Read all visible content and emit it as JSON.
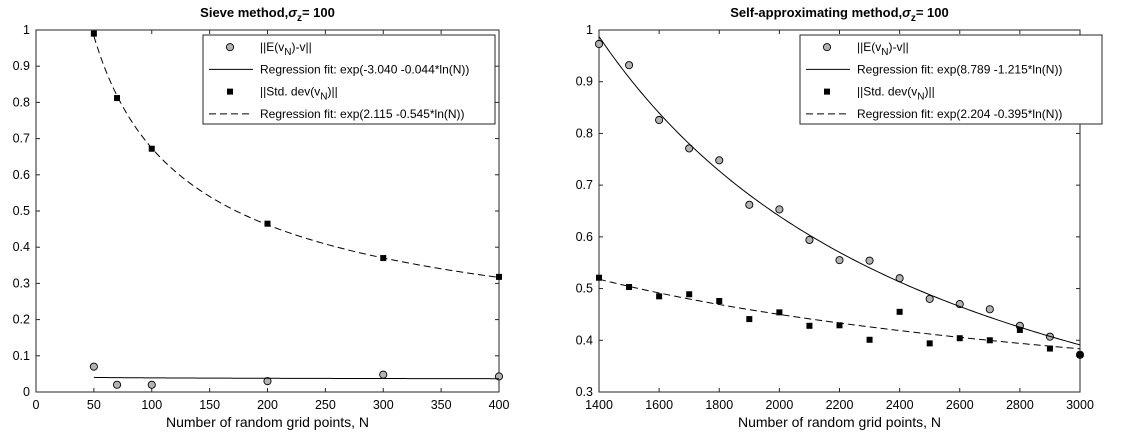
{
  "chart_data": [
    {
      "type": "scatter",
      "title_main": "Sieve method,",
      "title_sigma": "σ",
      "title_sub": "z",
      "title_tail": "= 100",
      "xlabel": "Number of random grid points, N",
      "ylabel": "",
      "xlim": [
        0,
        400
      ],
      "ylim": [
        0,
        1
      ],
      "xticks": [
        0,
        50,
        100,
        150,
        200,
        250,
        300,
        350,
        400
      ],
      "yticks": [
        0,
        0.1,
        0.2,
        0.3,
        0.4,
        0.5,
        0.6,
        0.7,
        0.8,
        0.9,
        1
      ],
      "grid": false,
      "legend_position": "top-right",
      "series": [
        {
          "name": "||E(vN)-v||",
          "label_parts": [
            "||E(v",
            "N",
            ")-v||"
          ],
          "marker": "circle",
          "x": [
            50,
            70,
            100,
            200,
            300,
            400
          ],
          "y": [
            0.07,
            0.02,
            0.02,
            0.03,
            0.048,
            0.043
          ]
        },
        {
          "name": "Regression fit: exp(-3.040 -0.044*ln(N))",
          "label_parts": [
            "Regression fit: exp(-3.040 -0.044*ln(N))"
          ],
          "line": "solid",
          "fit": {
            "a": -3.04,
            "b": -0.044
          },
          "x_range": [
            50,
            400
          ]
        },
        {
          "name": "||Std. dev(vN)||",
          "label_parts": [
            "||Std. dev(v",
            "N",
            ")||"
          ],
          "marker": "square",
          "x": [
            50,
            70,
            100,
            200,
            300,
            400
          ],
          "y": [
            0.99,
            0.812,
            0.672,
            0.465,
            0.37,
            0.318
          ]
        },
        {
          "name": "Regression fit: exp(2.115 -0.545*ln(N))",
          "label_parts": [
            "Regression fit: exp(2.115 -0.545*ln(N))"
          ],
          "line": "dashed",
          "fit": {
            "a": 2.115,
            "b": -0.545
          },
          "x_range": [
            50,
            400
          ]
        }
      ]
    },
    {
      "type": "scatter",
      "title_main": "Self-approximating method,",
      "title_sigma": "σ",
      "title_sub": "z",
      "title_tail": "= 100",
      "xlabel": "Number of random grid points, N",
      "ylabel": "",
      "xlim": [
        1400,
        3000
      ],
      "ylim": [
        0.3,
        1
      ],
      "xticks": [
        1400,
        1600,
        1800,
        2000,
        2200,
        2400,
        2600,
        2800,
        3000
      ],
      "yticks": [
        0.3,
        0.4,
        0.5,
        0.6,
        0.7,
        0.8,
        0.9,
        1
      ],
      "grid": false,
      "legend_position": "top-right",
      "series": [
        {
          "name": "||E(vN)-v||",
          "label_parts": [
            "||E(v",
            "N",
            ")-v||"
          ],
          "marker": "circle",
          "x": [
            1400,
            1500,
            1600,
            1700,
            1800,
            1900,
            2000,
            2100,
            2200,
            2300,
            2400,
            2500,
            2600,
            2700,
            2800,
            2900,
            3000
          ],
          "y": [
            0.973,
            0.932,
            0.826,
            0.771,
            0.748,
            0.662,
            0.653,
            0.594,
            0.555,
            0.554,
            0.52,
            0.48,
            0.47,
            0.46,
            0.428,
            0.407,
            0.372
          ]
        },
        {
          "name": "Regression fit: exp(8.789 -1.215*ln(N))",
          "label_parts": [
            "Regression fit: exp(8.789 -1.215*ln(N))"
          ],
          "line": "solid",
          "fit": {
            "a": 8.789,
            "b": -1.215
          },
          "x_range": [
            1400,
            3000
          ]
        },
        {
          "name": "||Std. dev(vN)||",
          "label_parts": [
            "||Std. dev(v",
            "N",
            ")||"
          ],
          "marker": "square",
          "x": [
            1400,
            1500,
            1600,
            1700,
            1800,
            1900,
            2000,
            2100,
            2200,
            2300,
            2400,
            2500,
            2600,
            2700,
            2800,
            2900,
            3000
          ],
          "y": [
            0.521,
            0.503,
            0.485,
            0.489,
            0.476,
            0.441,
            0.454,
            0.428,
            0.429,
            0.401,
            0.455,
            0.394,
            0.404,
            0.4,
            0.42,
            0.384,
            0.372
          ]
        },
        {
          "name": "Regression fit: exp(2.204 -0.395*ln(N))",
          "label_parts": [
            "Regression fit: exp(2.204 -0.395*ln(N))"
          ],
          "line": "dashed",
          "fit": {
            "a": 2.204,
            "b": -0.395
          },
          "x_range": [
            1400,
            3000
          ]
        }
      ]
    }
  ]
}
